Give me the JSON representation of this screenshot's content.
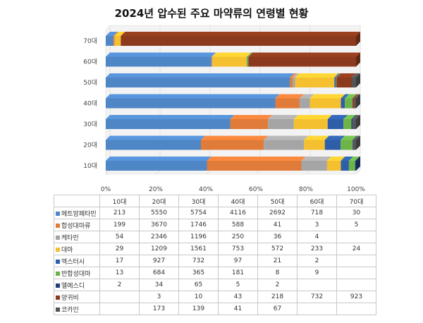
{
  "chart_data": {
    "type": "bar",
    "stacked": "percent",
    "orientation": "horizontal",
    "title": "2024년 압수된 주요 마약류의 연령별 현황",
    "categories": [
      "10대",
      "20대",
      "30대",
      "40대",
      "50대",
      "60대",
      "70대"
    ],
    "x_ticks": [
      "0%",
      "20%",
      "40%",
      "60%",
      "80%",
      "100%"
    ],
    "grid": true,
    "legend": "table-below",
    "series": [
      {
        "name": "메트암페타민",
        "color": "#4f86c6",
        "values": [
          213,
          5550,
          5754,
          4116,
          2692,
          718,
          30
        ]
      },
      {
        "name": "합성대마류",
        "color": "#e07b39",
        "values": [
          199,
          3670,
          1746,
          588,
          41,
          3,
          5
        ]
      },
      {
        "name": "케타민",
        "color": "#a5a5a5",
        "values": [
          54,
          2346,
          1196,
          250,
          36,
          4,
          null
        ]
      },
      {
        "name": "대마",
        "color": "#f5c02f",
        "values": [
          29,
          1209,
          1561,
          753,
          572,
          233,
          24
        ]
      },
      {
        "name": "엑스터시",
        "color": "#2f5ea8",
        "values": [
          17,
          927,
          732,
          97,
          21,
          2,
          null
        ]
      },
      {
        "name": "반합성대마",
        "color": "#6db347",
        "values": [
          13,
          684,
          365,
          181,
          8,
          9,
          null
        ]
      },
      {
        "name": "엘에스디",
        "color": "#1f3d78",
        "values": [
          2,
          34,
          65,
          5,
          2,
          null,
          null
        ]
      },
      {
        "name": "양귀비",
        "color": "#8b3a1d",
        "values": [
          null,
          3,
          10,
          43,
          218,
          732,
          923
        ]
      },
      {
        "name": "코카인",
        "color": "#555555",
        "values": [
          null,
          173,
          139,
          41,
          67,
          null,
          null
        ]
      }
    ]
  }
}
